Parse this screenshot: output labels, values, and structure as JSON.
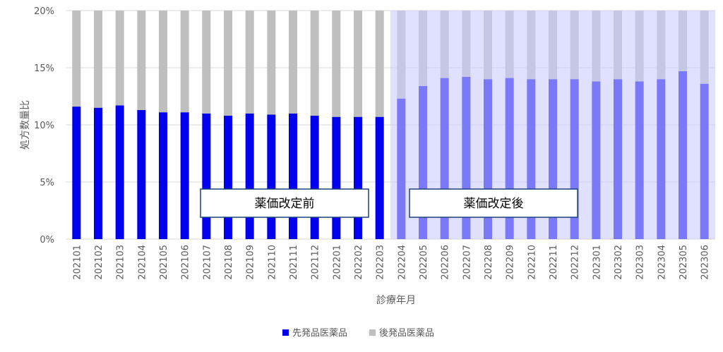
{
  "chart_data": {
    "type": "bar",
    "stacked": true,
    "title": "",
    "xlabel": "診療年月",
    "ylabel": "処方数量比",
    "ylim": [
      0,
      20
    ],
    "y_ticks": [
      "0%",
      "5%",
      "10%",
      "15%",
      "20%"
    ],
    "y_tick_values": [
      0,
      5,
      10,
      15,
      20
    ],
    "grid": "horizontal",
    "legend_position": "bottom",
    "categories": [
      "202101",
      "202102",
      "202103",
      "202104",
      "202105",
      "202106",
      "202107",
      "202108",
      "202109",
      "202110",
      "202111",
      "202112",
      "202201",
      "202202",
      "202203",
      "202204",
      "202205",
      "202206",
      "202207",
      "202208",
      "202209",
      "202210",
      "202211",
      "202212",
      "202301",
      "202302",
      "202303",
      "202304",
      "202305",
      "202306"
    ],
    "series": [
      {
        "name": "先発品医薬品",
        "color": "#0000ee",
        "values": [
          11.6,
          11.5,
          11.7,
          11.3,
          11.1,
          11.1,
          11.0,
          10.8,
          11.0,
          10.9,
          11.0,
          10.8,
          10.7,
          10.7,
          10.7,
          12.3,
          13.4,
          14.1,
          14.2,
          14.0,
          14.1,
          14.0,
          14.0,
          14.0,
          13.8,
          14.0,
          13.8,
          14.0,
          14.7,
          13.6
        ]
      },
      {
        "name": "後発品医薬品",
        "color": "#bfbfbf",
        "values": [
          8.4,
          8.5,
          8.3,
          8.7,
          8.9,
          8.9,
          9.0,
          9.2,
          9.0,
          9.1,
          9.0,
          9.2,
          9.3,
          9.3,
          9.3,
          7.7,
          6.6,
          5.9,
          5.8,
          6.0,
          5.9,
          6.0,
          6.0,
          6.0,
          6.2,
          6.0,
          6.2,
          6.0,
          5.3,
          6.4
        ]
      }
    ],
    "annotations": {
      "before_label": "薬価改定前",
      "after_label": "薬価改定後",
      "after_start_category": "202204",
      "after_region_color": "#ccccff",
      "after_region_opacity": 0.6
    }
  }
}
